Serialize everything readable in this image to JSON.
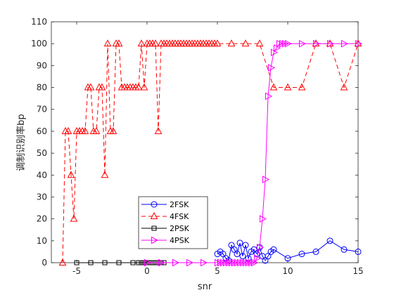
{
  "chart_data": {
    "type": "line",
    "xlabel": "snr",
    "ylabel": "调制识别率bp",
    "xlim": [
      -6.8,
      15
    ],
    "ylim": [
      0,
      110
    ],
    "xticks": [
      -5,
      0,
      5,
      10,
      15
    ],
    "yticks": [
      0,
      10,
      20,
      30,
      40,
      50,
      60,
      70,
      80,
      90,
      100,
      110
    ],
    "grid": false,
    "legend_location": "lower-center",
    "series": [
      {
        "name": "2FSK",
        "color": "#0000ff",
        "marker": "circle",
        "line": "solid",
        "x": [
          5,
          5.2,
          5.4,
          5.6,
          5.8,
          6.0,
          6.2,
          6.4,
          6.6,
          6.8,
          7.0,
          7.2,
          7.4,
          7.6,
          7.8,
          8.0,
          8.2,
          8.4,
          8.6,
          8.8,
          9,
          10,
          11,
          12,
          13,
          14,
          15
        ],
        "y": [
          4,
          5,
          4,
          2,
          1,
          8,
          6,
          4,
          9,
          3,
          8,
          2,
          5,
          6,
          4,
          7,
          3,
          1,
          3,
          5,
          6,
          2,
          4,
          5,
          10,
          6,
          5
        ]
      },
      {
        "name": "4FSK",
        "color": "#ff0000",
        "marker": "triangle",
        "line": "dashed",
        "x": [
          -6,
          -5.8,
          -5.6,
          -5.4,
          -5.2,
          -5.0,
          -4.8,
          -4.6,
          -4.4,
          -4.2,
          -4.0,
          -3.8,
          -3.6,
          -3.4,
          -3.2,
          -3.0,
          -2.8,
          -2.6,
          -2.4,
          -2.2,
          -2.0,
          -1.8,
          -1.6,
          -1.4,
          -1.2,
          -1.0,
          -0.8,
          -0.6,
          -0.4,
          -0.2,
          0.0,
          0.2,
          0.4,
          0.6,
          0.8,
          1.0,
          1.2,
          1.4,
          1.6,
          1.8,
          2.0,
          2.2,
          2.4,
          2.6,
          2.8,
          3.0,
          3.2,
          3.4,
          3.6,
          3.8,
          4.0,
          4.2,
          4.4,
          4.6,
          4.8,
          5,
          6,
          7,
          8,
          9,
          10,
          11,
          12,
          13,
          14,
          15
        ],
        "y": [
          0,
          60,
          60,
          40,
          20,
          60,
          60,
          60,
          60,
          80,
          80,
          60,
          60,
          80,
          80,
          40,
          100,
          60,
          60,
          100,
          100,
          80,
          80,
          80,
          80,
          80,
          80,
          80,
          100,
          80,
          100,
          100,
          100,
          100,
          60,
          100,
          100,
          100,
          100,
          100,
          100,
          100,
          100,
          100,
          100,
          100,
          100,
          100,
          100,
          100,
          100,
          100,
          100,
          100,
          100,
          100,
          100,
          100,
          100,
          80,
          80,
          80,
          100,
          100,
          80,
          100
        ]
      },
      {
        "name": "2PSK",
        "color": "#000000",
        "marker": "square",
        "line": "solid",
        "x": [
          -5,
          -4,
          -3,
          -2,
          -1,
          -0.6,
          -0.4,
          -0.2,
          0,
          0.2,
          0.4,
          0.6,
          0.8,
          1.0,
          1.2
        ],
        "y": [
          0,
          0,
          0,
          0,
          0,
          0,
          0,
          0,
          0,
          0,
          0,
          0,
          0,
          0,
          0
        ]
      },
      {
        "name": "4PSK",
        "color": "#ff00ff",
        "marker": "triangle-right",
        "line": "solid",
        "x": [
          0,
          1,
          2,
          3,
          4,
          5,
          5.2,
          5.4,
          5.6,
          5.8,
          6.0,
          6.2,
          6.4,
          6.6,
          6.8,
          7.0,
          7.2,
          7.4,
          7.6,
          7.8,
          8.0,
          8.2,
          8.4,
          8.6,
          8.8,
          9.0,
          9.2,
          9.4,
          9.6,
          9.8,
          10,
          11,
          12,
          13,
          14,
          15
        ],
        "y": [
          0,
          0,
          0,
          0,
          0,
          0,
          0,
          0,
          0,
          0,
          0,
          0,
          0,
          0,
          0,
          0,
          0,
          0,
          0,
          2,
          7,
          20,
          38,
          76,
          89,
          96,
          98,
          100,
          100,
          100,
          100,
          100,
          100,
          100,
          100,
          100
        ]
      }
    ]
  }
}
